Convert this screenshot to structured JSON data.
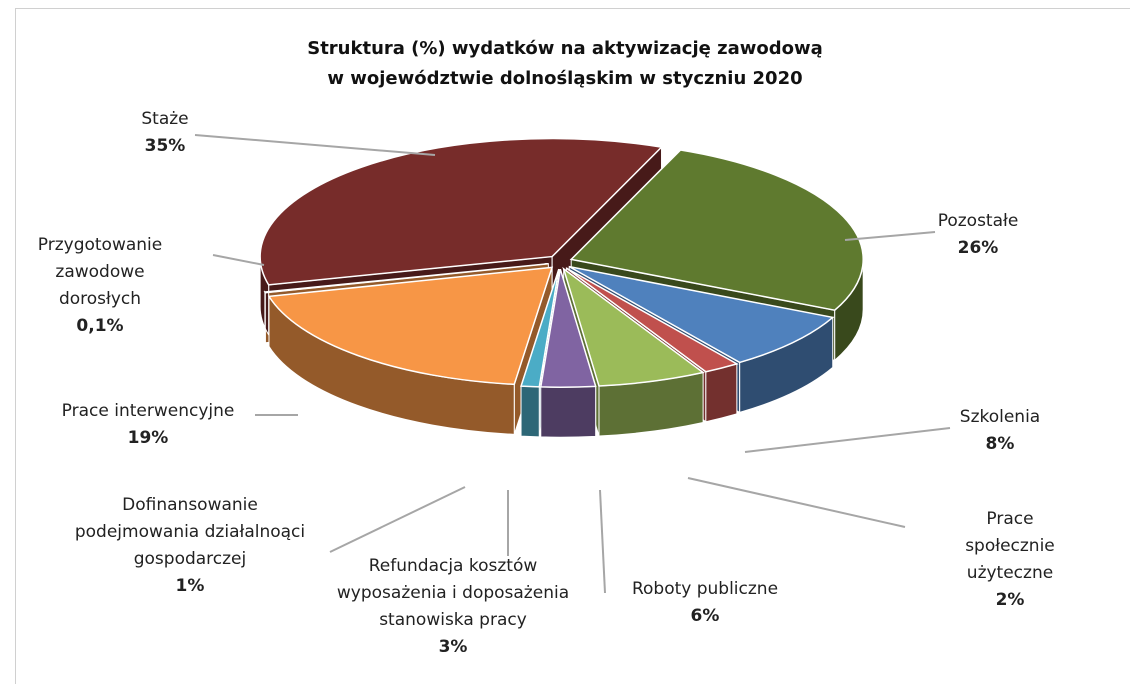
{
  "chart_data": {
    "type": "pie",
    "title": "Struktura (%) wydatków na aktywizację zawodową\nw województwie dolnośląskim w styczniu 2020",
    "categories": [
      "Pozostałe",
      "Szkolenia",
      "Prace społecznie\nużyteczne",
      "Roboty publiczne",
      "Refundacja kosztów\nwyposażenia i doposażenia\nstanowiska pracy",
      "Dofinansowanie\npodejmowania działalnoąci\ngospodarczej",
      "Prace interwencyjne",
      "Przygotowanie\nzawodowe\ndorosłych",
      "Staże"
    ],
    "values": [
      26,
      8,
      2,
      6,
      3,
      1,
      19,
      0.1,
      35
    ],
    "value_labels": [
      "26%",
      "8%",
      "2%",
      "6%",
      "3%",
      "1%",
      "19%",
      "0,1%",
      "35%"
    ],
    "colors": [
      "#5f7a2f",
      "#4f81bd",
      "#c0504d",
      "#9bbb59",
      "#8064a2",
      "#4bacc6",
      "#f79646",
      "#f79646",
      "#772c2a"
    ]
  }
}
